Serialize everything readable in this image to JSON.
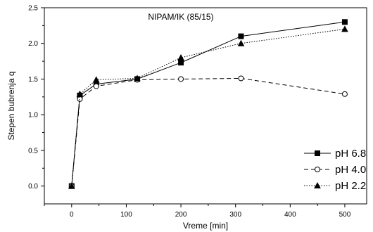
{
  "chart_data": {
    "type": "line",
    "title": "NIPAM/IK (85/15)",
    "xlabel": "Vreme [min]",
    "ylabel": "Stepen bubrenja q",
    "xlim": [
      -50,
      540
    ],
    "ylim": [
      -0.25,
      2.5
    ],
    "xticks": [
      0,
      100,
      200,
      300,
      400,
      500
    ],
    "xtick_labels": [
      "0",
      "100",
      "200",
      "300",
      "400",
      "500"
    ],
    "yticks": [
      0.0,
      0.5,
      1.0,
      1.5,
      2.0,
      2.5
    ],
    "ytick_labels": [
      "0.0",
      "0.5",
      "1.0",
      "1.5",
      "2.0",
      "2.5"
    ],
    "grid": false,
    "legend_position": "right",
    "series": [
      {
        "name": "pH 6.8",
        "marker": "filled-square",
        "line_style": "solid",
        "color": "#000000",
        "x": [
          0,
          15,
          45,
          120,
          200,
          310,
          500
        ],
        "y": [
          0.0,
          1.27,
          1.43,
          1.5,
          1.73,
          2.1,
          2.3
        ]
      },
      {
        "name": "pH 4.0",
        "marker": "open-circle",
        "line_style": "dashed",
        "color": "#000000",
        "x": [
          0,
          15,
          45,
          120,
          200,
          310,
          500
        ],
        "y": [
          0.0,
          1.22,
          1.4,
          1.49,
          1.5,
          1.51,
          1.29
        ]
      },
      {
        "name": "pH 2.2",
        "marker": "filled-triangle",
        "line_style": "dotted",
        "color": "#000000",
        "x": [
          0,
          15,
          45,
          120,
          200,
          310,
          500
        ],
        "y": [
          0.0,
          1.29,
          1.49,
          1.51,
          1.8,
          2.0,
          2.2
        ]
      }
    ]
  }
}
